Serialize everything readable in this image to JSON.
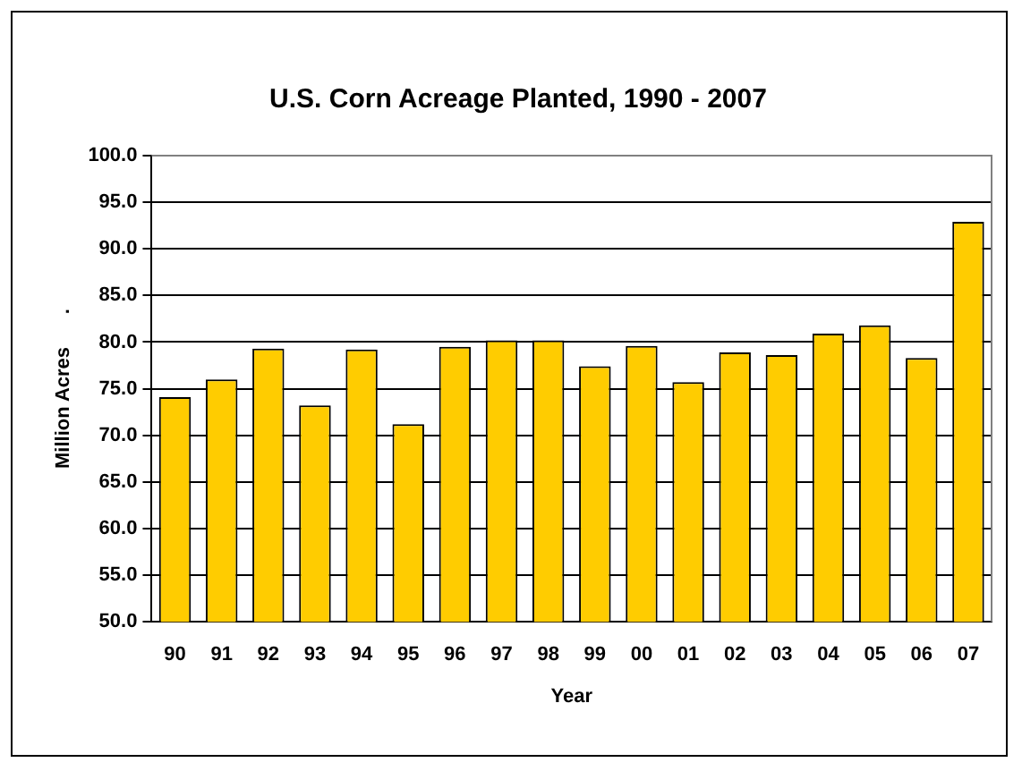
{
  "chart_data": {
    "type": "bar",
    "title": "U.S. Corn Acreage Planted, 1990 - 2007",
    "xlabel": "Year",
    "ylabel": "Million Acres      .",
    "categories": [
      "90",
      "91",
      "92",
      "93",
      "94",
      "95",
      "96",
      "97",
      "98",
      "99",
      "00",
      "01",
      "02",
      "03",
      "04",
      "05",
      "06",
      "07"
    ],
    "values": [
      74.1,
      76.0,
      79.3,
      73.2,
      79.2,
      71.2,
      79.5,
      80.2,
      80.2,
      77.4,
      79.6,
      75.7,
      78.9,
      78.6,
      80.9,
      81.8,
      78.3,
      92.9
    ],
    "color": "#ffcc00",
    "ylim": [
      50,
      100
    ],
    "yticks": [
      {
        "value": 50,
        "label": "50.0"
      },
      {
        "value": 55,
        "label": "55.0"
      },
      {
        "value": 60,
        "label": "60.0"
      },
      {
        "value": 65,
        "label": "65.0"
      },
      {
        "value": 70,
        "label": "70.0"
      },
      {
        "value": 75,
        "label": "75.0"
      },
      {
        "value": 80,
        "label": "80.0"
      },
      {
        "value": 85,
        "label": "85.0"
      },
      {
        "value": 90,
        "label": "90.0"
      },
      {
        "value": 95,
        "label": "95.0"
      },
      {
        "value": 100,
        "label": "100.0"
      }
    ],
    "grid": "y",
    "legend": false
  }
}
